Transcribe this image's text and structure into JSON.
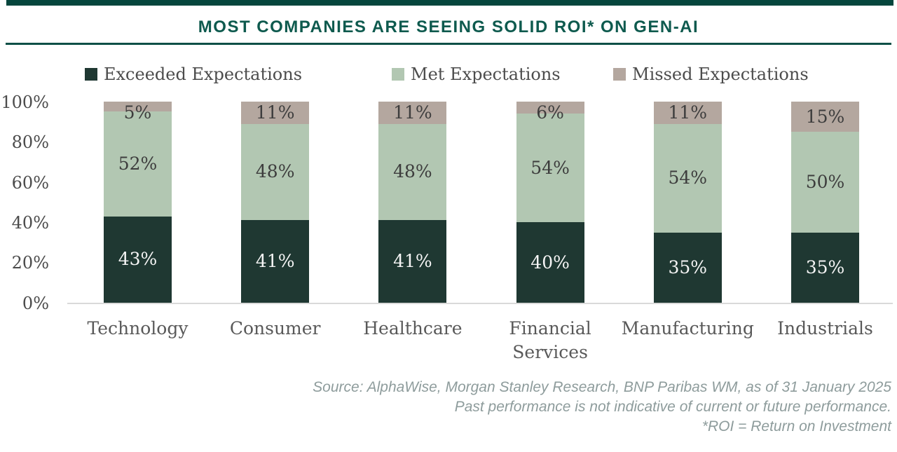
{
  "header": {
    "title": "MOST COMPANIES ARE SEEING SOLID ROI* ON GEN-AI"
  },
  "colors": {
    "top_bar": "#05463d",
    "title_text": "#0e5a4e",
    "divider": "#0c4f46",
    "exceeded": "#1f3832",
    "met": "#b2c7b2",
    "missed": "#b4a79f",
    "label_on_dark": "#f5f5f5",
    "label_on_light": "#3d3d3d",
    "axis_text": "#4c4c4c",
    "category_text": "#595959",
    "baseline": "#d9d9d9",
    "source_text": "#8e9c9c"
  },
  "chart_data": {
    "type": "bar",
    "stacked": true,
    "title": "MOST COMPANIES ARE SEEING SOLID ROI* ON GEN-AI",
    "categories": [
      "Technology",
      "Consumer",
      "Healthcare",
      "Financial Services",
      "Manufacturing",
      "Industrials"
    ],
    "series": [
      {
        "name": "Exceeded Expectations",
        "color_key": "exceeded",
        "values": [
          43,
          41,
          41,
          40,
          35,
          35
        ]
      },
      {
        "name": "Met Expectations",
        "color_key": "met",
        "values": [
          52,
          48,
          48,
          54,
          54,
          50
        ]
      },
      {
        "name": "Missed Expectations",
        "color_key": "missed",
        "values": [
          5,
          11,
          11,
          6,
          11,
          15
        ]
      }
    ],
    "xlabel": "",
    "ylabel": "",
    "ylim": [
      0,
      100
    ],
    "yticks": [
      "100%",
      "80%",
      "60%",
      "40%",
      "20%",
      "0%"
    ],
    "value_suffix": "%",
    "legend_position": "top",
    "grid": false
  },
  "footer": {
    "source_lines": [
      "Source: AlphaWise, Morgan Stanley Research, BNP Paribas WM, as of 31 January 2025",
      "Past performance is not indicative of current or future performance.",
      "*ROI = Return on Investment"
    ]
  }
}
